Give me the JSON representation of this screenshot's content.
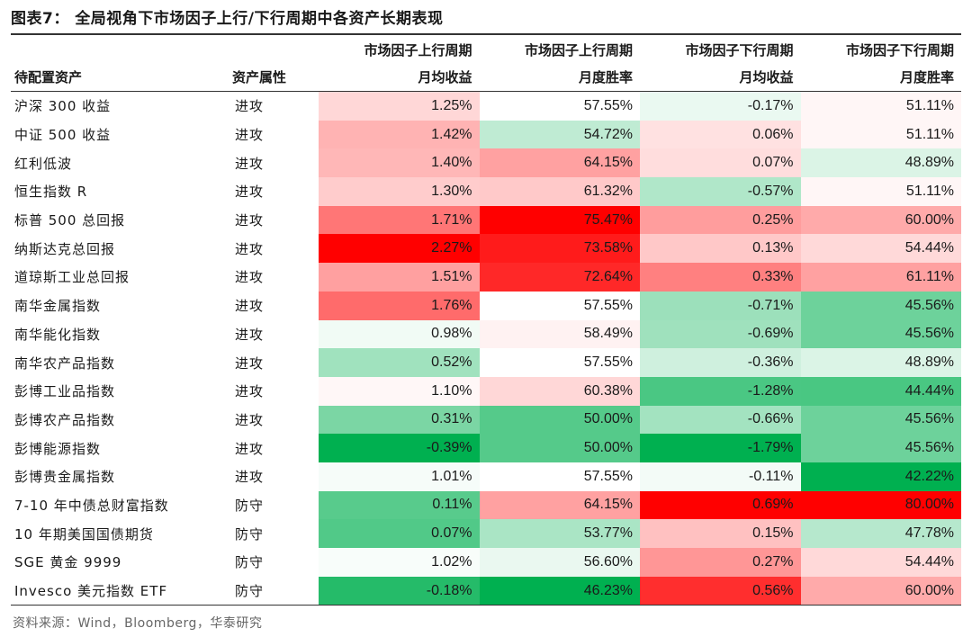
{
  "title": "图表7：  全局视角下市场因子上行/下行周期中各资产长期表现",
  "header": {
    "group_labels": [
      "市场因子上行周期",
      "市场因子上行周期",
      "市场因子下行周期",
      "市场因子下行周期"
    ],
    "asset_label": "待配置资产",
    "attr_label": "资产属性",
    "metric_labels": [
      "月均收益",
      "月度胜率",
      "月均收益",
      "月度胜率"
    ]
  },
  "rows": [
    {
      "asset": "沪深 300 收益",
      "attr": "进攻",
      "values": [
        "1.25%",
        "57.55%",
        "-0.17%",
        "51.11%"
      ]
    },
    {
      "asset": "中证 500 收益",
      "attr": "进攻",
      "values": [
        "1.42%",
        "54.72%",
        "0.06%",
        "51.11%"
      ]
    },
    {
      "asset": "红利低波",
      "attr": "进攻",
      "values": [
        "1.40%",
        "64.15%",
        "0.07%",
        "48.89%"
      ]
    },
    {
      "asset": "恒生指数 R",
      "attr": "进攻",
      "values": [
        "1.30%",
        "61.32%",
        "-0.57%",
        "51.11%"
      ]
    },
    {
      "asset": "标普 500 总回报",
      "attr": "进攻",
      "values": [
        "1.71%",
        "75.47%",
        "0.25%",
        "60.00%"
      ]
    },
    {
      "asset": "纳斯达克总回报",
      "attr": "进攻",
      "values": [
        "2.27%",
        "73.58%",
        "0.13%",
        "54.44%"
      ]
    },
    {
      "asset": "道琼斯工业总回报",
      "attr": "进攻",
      "values": [
        "1.51%",
        "72.64%",
        "0.33%",
        "61.11%"
      ]
    },
    {
      "asset": "南华金属指数",
      "attr": "进攻",
      "values": [
        "1.76%",
        "57.55%",
        "-0.71%",
        "45.56%"
      ]
    },
    {
      "asset": "南华能化指数",
      "attr": "进攻",
      "values": [
        "0.98%",
        "58.49%",
        "-0.69%",
        "45.56%"
      ]
    },
    {
      "asset": "南华农产品指数",
      "attr": "进攻",
      "values": [
        "0.52%",
        "57.55%",
        "-0.36%",
        "48.89%"
      ]
    },
    {
      "asset": "彭博工业品指数",
      "attr": "进攻",
      "values": [
        "1.10%",
        "60.38%",
        "-1.28%",
        "44.44%"
      ]
    },
    {
      "asset": "彭博农产品指数",
      "attr": "进攻",
      "values": [
        "0.31%",
        "50.00%",
        "-0.66%",
        "45.56%"
      ]
    },
    {
      "asset": "彭博能源指数",
      "attr": "进攻",
      "values": [
        "-0.39%",
        "50.00%",
        "-1.79%",
        "45.56%"
      ]
    },
    {
      "asset": "彭博贵金属指数",
      "attr": "进攻",
      "values": [
        "1.01%",
        "57.55%",
        "-0.11%",
        "42.22%"
      ]
    },
    {
      "asset": "7-10 年中债总财富指数",
      "attr": "防守",
      "values": [
        "0.11%",
        "64.15%",
        "0.69%",
        "80.00%"
      ]
    },
    {
      "asset": "10 年期美国国债期货",
      "attr": "防守",
      "values": [
        "0.07%",
        "53.77%",
        "0.15%",
        "47.78%"
      ]
    },
    {
      "asset": "SGE 黄金 9999",
      "attr": "防守",
      "values": [
        "1.02%",
        "56.60%",
        "0.27%",
        "54.44%"
      ]
    },
    {
      "asset": "Invesco 美元指数 ETF",
      "attr": "防守",
      "values": [
        "-0.18%",
        "46.23%",
        "0.56%",
        "60.00%"
      ]
    }
  ],
  "heatmap": {
    "low_color": "#00b050",
    "mid_color": "#ffffff",
    "high_color": "#ff0000"
  },
  "source": "资料来源：Wind，Bloomberg，华泰研究"
}
